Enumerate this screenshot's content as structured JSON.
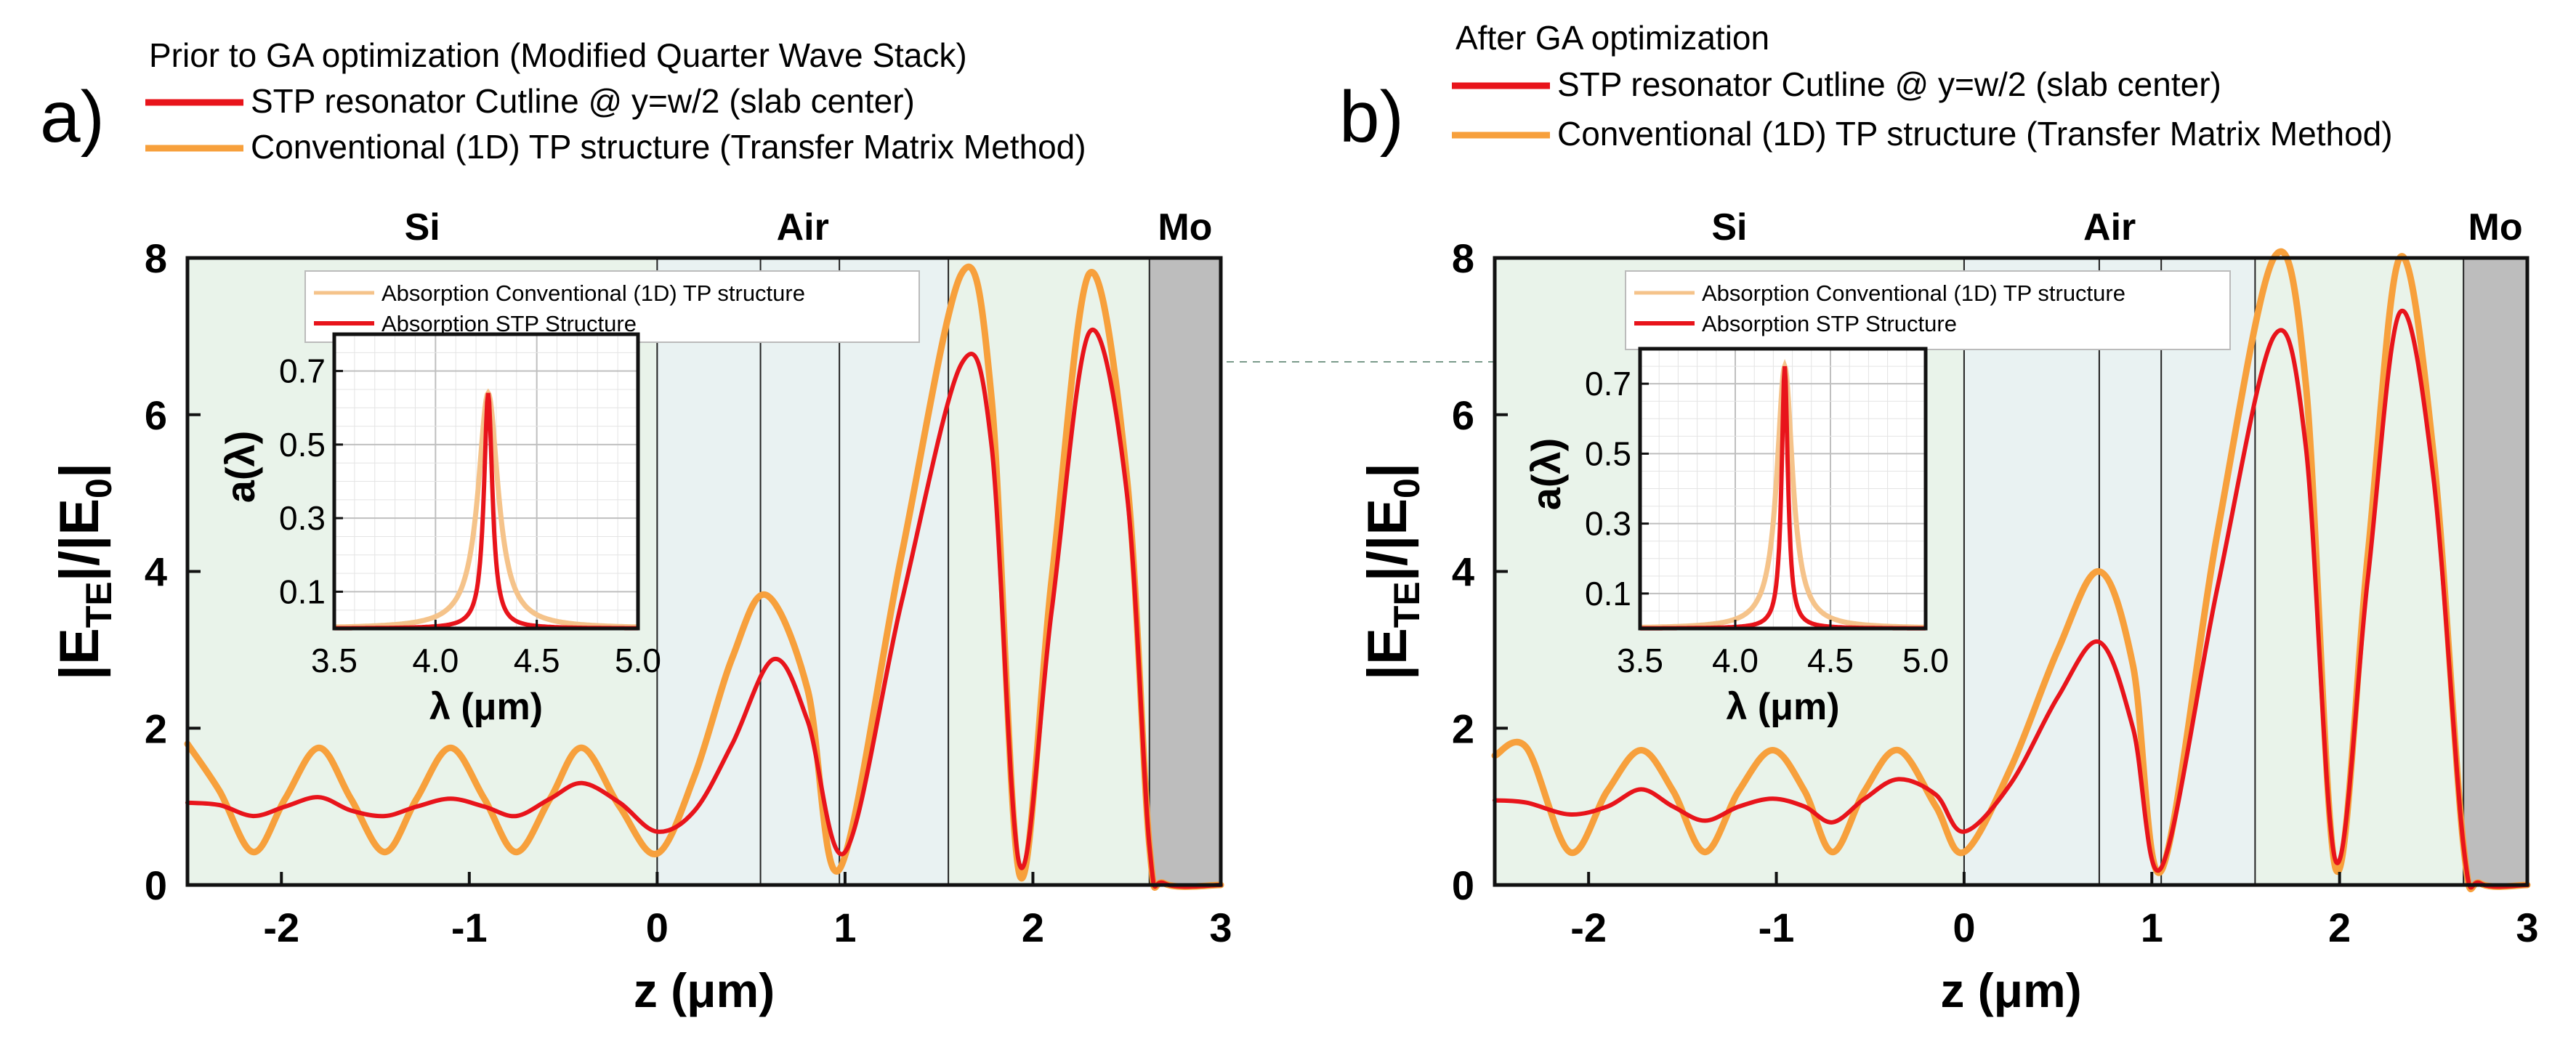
{
  "colors": {
    "red": "#e8141b",
    "orange": "#f7a03c",
    "inset_orange": "#f5c38a",
    "si_bg": "#e9f3ea",
    "air_bg": "#e9f2f2",
    "mo_bg": "#bdbdbd",
    "axis": "#111111"
  },
  "chart_data": [
    {
      "type": "line",
      "panel_label": "a)",
      "header": "Prior to GA optimization (Modified Quarter Wave Stack)",
      "series": [
        {
          "name": "STP resonator Cutline @ y=w/2 (slab center)",
          "color": "red",
          "x": [
            -2.5,
            -2.33,
            -2.15,
            -1.98,
            -1.8,
            -1.63,
            -1.45,
            -1.28,
            -1.1,
            -0.92,
            -0.75,
            -0.57,
            -0.4,
            -0.2,
            0,
            0.2,
            0.4,
            0.62,
            0.8,
            1,
            1.3,
            1.62,
            1.78,
            1.93,
            2.1,
            2.3,
            2.5,
            2.62,
            2.7,
            3
          ],
          "y": [
            1.05,
            1.02,
            0.88,
            1.0,
            1.12,
            0.95,
            0.88,
            1.0,
            1.1,
            1.0,
            0.88,
            1.1,
            1.3,
            1.05,
            0.68,
            0.95,
            1.8,
            2.88,
            2.1,
            0.42,
            3.6,
            6.65,
            5.6,
            0.25,
            3.5,
            7.05,
            5.0,
            0.5,
            0.02,
            0.0
          ]
        },
        {
          "name": "Conventional (1D) TP structure (Transfer Matrix Method)",
          "color": "orange",
          "x": [
            -2.5,
            -2.33,
            -2.15,
            -1.98,
            -1.8,
            -1.63,
            -1.45,
            -1.28,
            -1.1,
            -0.92,
            -0.75,
            -0.57,
            -0.4,
            -0.2,
            0,
            0.2,
            0.4,
            0.58,
            0.8,
            0.97,
            1.3,
            1.62,
            1.78,
            1.93,
            2.1,
            2.3,
            2.5,
            2.62,
            2.7,
            3
          ],
          "y": [
            1.8,
            1.2,
            0.42,
            1.1,
            1.75,
            1.1,
            0.42,
            1.1,
            1.75,
            1.1,
            0.42,
            1.1,
            1.75,
            1.0,
            0.4,
            1.4,
            2.9,
            3.7,
            2.5,
            0.2,
            4.2,
            7.8,
            6.2,
            0.12,
            3.9,
            7.8,
            5.2,
            0.5,
            0.02,
            0.0
          ]
        }
      ],
      "xlabel": "z (μm)",
      "ylabel_main": "|E",
      "ylabel_sub1": "TE",
      "ylabel_mid": "|/|E",
      "ylabel_sub2": "0",
      "ylabel_end": "|",
      "xlim": [
        -2.5,
        3
      ],
      "ylim": [
        0,
        8
      ],
      "xticks": [
        "-2",
        "-1",
        "0",
        "1",
        "2",
        "3"
      ],
      "yticks": [
        "0",
        "2",
        "4",
        "6",
        "8"
      ],
      "regions": [
        {
          "label": "Si",
          "from": -2.5,
          "to": 0,
          "bg": "si_bg"
        },
        {
          "label": "Air",
          "from": 0,
          "to": 1.55,
          "bg": "air_bg"
        },
        {
          "label": "",
          "from": 1.55,
          "to": 2.62,
          "bg": "si_bg"
        },
        {
          "label": "Mo",
          "from": 2.62,
          "to": 3,
          "bg": "mo_bg"
        }
      ],
      "layer_lines": [
        0,
        0.55,
        0.97,
        1.55,
        2.62
      ],
      "inset": {
        "type": "line",
        "xlabel": "λ (μm)",
        "ylabel": "a(λ)",
        "xlim": [
          3.5,
          5.0
        ],
        "ylim": [
          0,
          0.8
        ],
        "xticks": [
          "3.5",
          "4.0",
          "4.5",
          "5.0"
        ],
        "yticks": [
          "0.1",
          "0.3",
          "0.5",
          "0.7"
        ],
        "legend": [
          "Absorption Conventional (1D) TP structure",
          "Absorption STP Structure"
        ],
        "peak_x": 4.26,
        "peak_y": 0.64,
        "width_outer": 0.06,
        "width_inner": 0.025
      }
    },
    {
      "type": "line",
      "panel_label": "b)",
      "header": "After GA optimization",
      "series": [
        {
          "name": "STP resonator Cutline @ y=w/2 (slab center)",
          "color": "red",
          "x": [
            -2.5,
            -2.33,
            -2.1,
            -1.9,
            -1.72,
            -1.55,
            -1.38,
            -1.2,
            -1.02,
            -0.85,
            -0.7,
            -0.53,
            -0.35,
            -0.15,
            0,
            0.25,
            0.5,
            0.72,
            0.9,
            1.05,
            1.35,
            1.65,
            1.82,
            1.98,
            2.15,
            2.32,
            2.5,
            2.66,
            2.75,
            3
          ],
          "y": [
            1.08,
            1.05,
            0.9,
            1.0,
            1.22,
            1.0,
            0.82,
            1.0,
            1.1,
            1.0,
            0.8,
            1.1,
            1.35,
            1.15,
            0.68,
            1.3,
            2.4,
            3.1,
            2.0,
            0.22,
            3.8,
            7.0,
            5.6,
            0.3,
            3.9,
            7.3,
            5.2,
            0.5,
            0.02,
            0.0
          ]
        },
        {
          "name": "Conventional (1D) TP structure (Transfer Matrix Method)",
          "color": "orange",
          "x": [
            -2.5,
            -2.33,
            -2.1,
            -1.9,
            -1.72,
            -1.55,
            -1.38,
            -1.2,
            -1.02,
            -0.85,
            -0.7,
            -0.53,
            -0.35,
            -0.15,
            0,
            0.25,
            0.5,
            0.72,
            0.9,
            1.05,
            1.35,
            1.65,
            1.82,
            1.98,
            2.15,
            2.32,
            2.5,
            2.66,
            2.75,
            3
          ],
          "y": [
            1.65,
            1.75,
            0.42,
            1.2,
            1.72,
            1.2,
            0.42,
            1.2,
            1.72,
            1.2,
            0.42,
            1.2,
            1.72,
            1.0,
            0.42,
            1.5,
            3.0,
            4.0,
            2.8,
            0.18,
            4.5,
            8.0,
            6.4,
            0.2,
            4.2,
            8.0,
            5.5,
            0.5,
            0.02,
            0.0
          ]
        }
      ],
      "xlabel": "z (μm)",
      "ylabel_main": "|E",
      "ylabel_sub1": "TE",
      "ylabel_mid": "|/|E",
      "ylabel_sub2": "0",
      "ylabel_end": "|",
      "xlim": [
        -2.5,
        3
      ],
      "ylim": [
        0,
        8
      ],
      "xticks": [
        "-2",
        "-1",
        "0",
        "1",
        "2",
        "3"
      ],
      "yticks": [
        "0",
        "2",
        "4",
        "6",
        "8"
      ],
      "regions": [
        {
          "label": "Si",
          "from": -2.5,
          "to": 0,
          "bg": "si_bg"
        },
        {
          "label": "Air",
          "from": 0,
          "to": 1.55,
          "bg": "air_bg"
        },
        {
          "label": "",
          "from": 1.55,
          "to": 2.66,
          "bg": "si_bg"
        },
        {
          "label": "Mo",
          "from": 2.66,
          "to": 3,
          "bg": "mo_bg"
        }
      ],
      "layer_lines": [
        0,
        0.72,
        1.05,
        1.55,
        2.66
      ],
      "inset": {
        "type": "line",
        "xlabel": "λ (μm)",
        "ylabel": "a(λ)",
        "xlim": [
          3.5,
          5.0
        ],
        "ylim": [
          0,
          0.8
        ],
        "xticks": [
          "3.5",
          "4.0",
          "4.5",
          "5.0"
        ],
        "yticks": [
          "0.1",
          "0.3",
          "0.5",
          "0.7"
        ],
        "legend": [
          "Absorption Conventional (1D) TP structure",
          "Absorption STP Structure"
        ],
        "peak_x": 4.26,
        "peak_y": 0.75,
        "width_outer": 0.05,
        "width_inner": 0.02
      }
    }
  ]
}
